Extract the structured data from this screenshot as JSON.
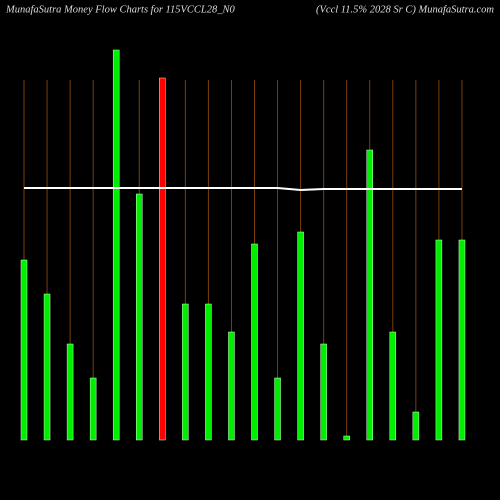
{
  "chart_data": {
    "type": "bar",
    "title": "MunafaSutra  Money Flow  Charts for 115VCCL28_N0",
    "subtitle": "(Vccl 11.5% 2028  Sr C) MunafaSutra.com",
    "categories": [
      null,
      null,
      null,
      null,
      null,
      null,
      null,
      null,
      null,
      null,
      null,
      null,
      null,
      null,
      null,
      null,
      null,
      null,
      null,
      null
    ],
    "values": [
      45,
      36.5,
      24,
      15.5,
      97.5,
      61.5,
      90.5,
      34,
      34,
      27,
      49,
      15.5,
      52,
      24,
      1,
      72.5,
      27,
      7,
      50,
      50
    ],
    "colors": [
      "#00ee00",
      "#00ee00",
      "#00ee00",
      "#00ee00",
      "#00ee00",
      "#00ee00",
      "#ff0000",
      "#00ee00",
      "#00ee00",
      "#00ee00",
      "#00ee00",
      "#00ee00",
      "#00ee00",
      "#00ee00",
      "#00ee00",
      "#00ee00",
      "#00ee00",
      "#00ee00",
      "#00ee00",
      "#00ee00"
    ],
    "line": {
      "color": "#ffffff",
      "values": [
        63,
        63,
        63,
        63,
        63,
        63,
        63,
        63,
        63,
        63,
        63,
        63,
        62.5,
        62.75,
        62.75,
        62.75,
        62.75,
        62.75,
        62.75,
        62.75
      ]
    },
    "ylim": [
      0,
      100
    ]
  }
}
